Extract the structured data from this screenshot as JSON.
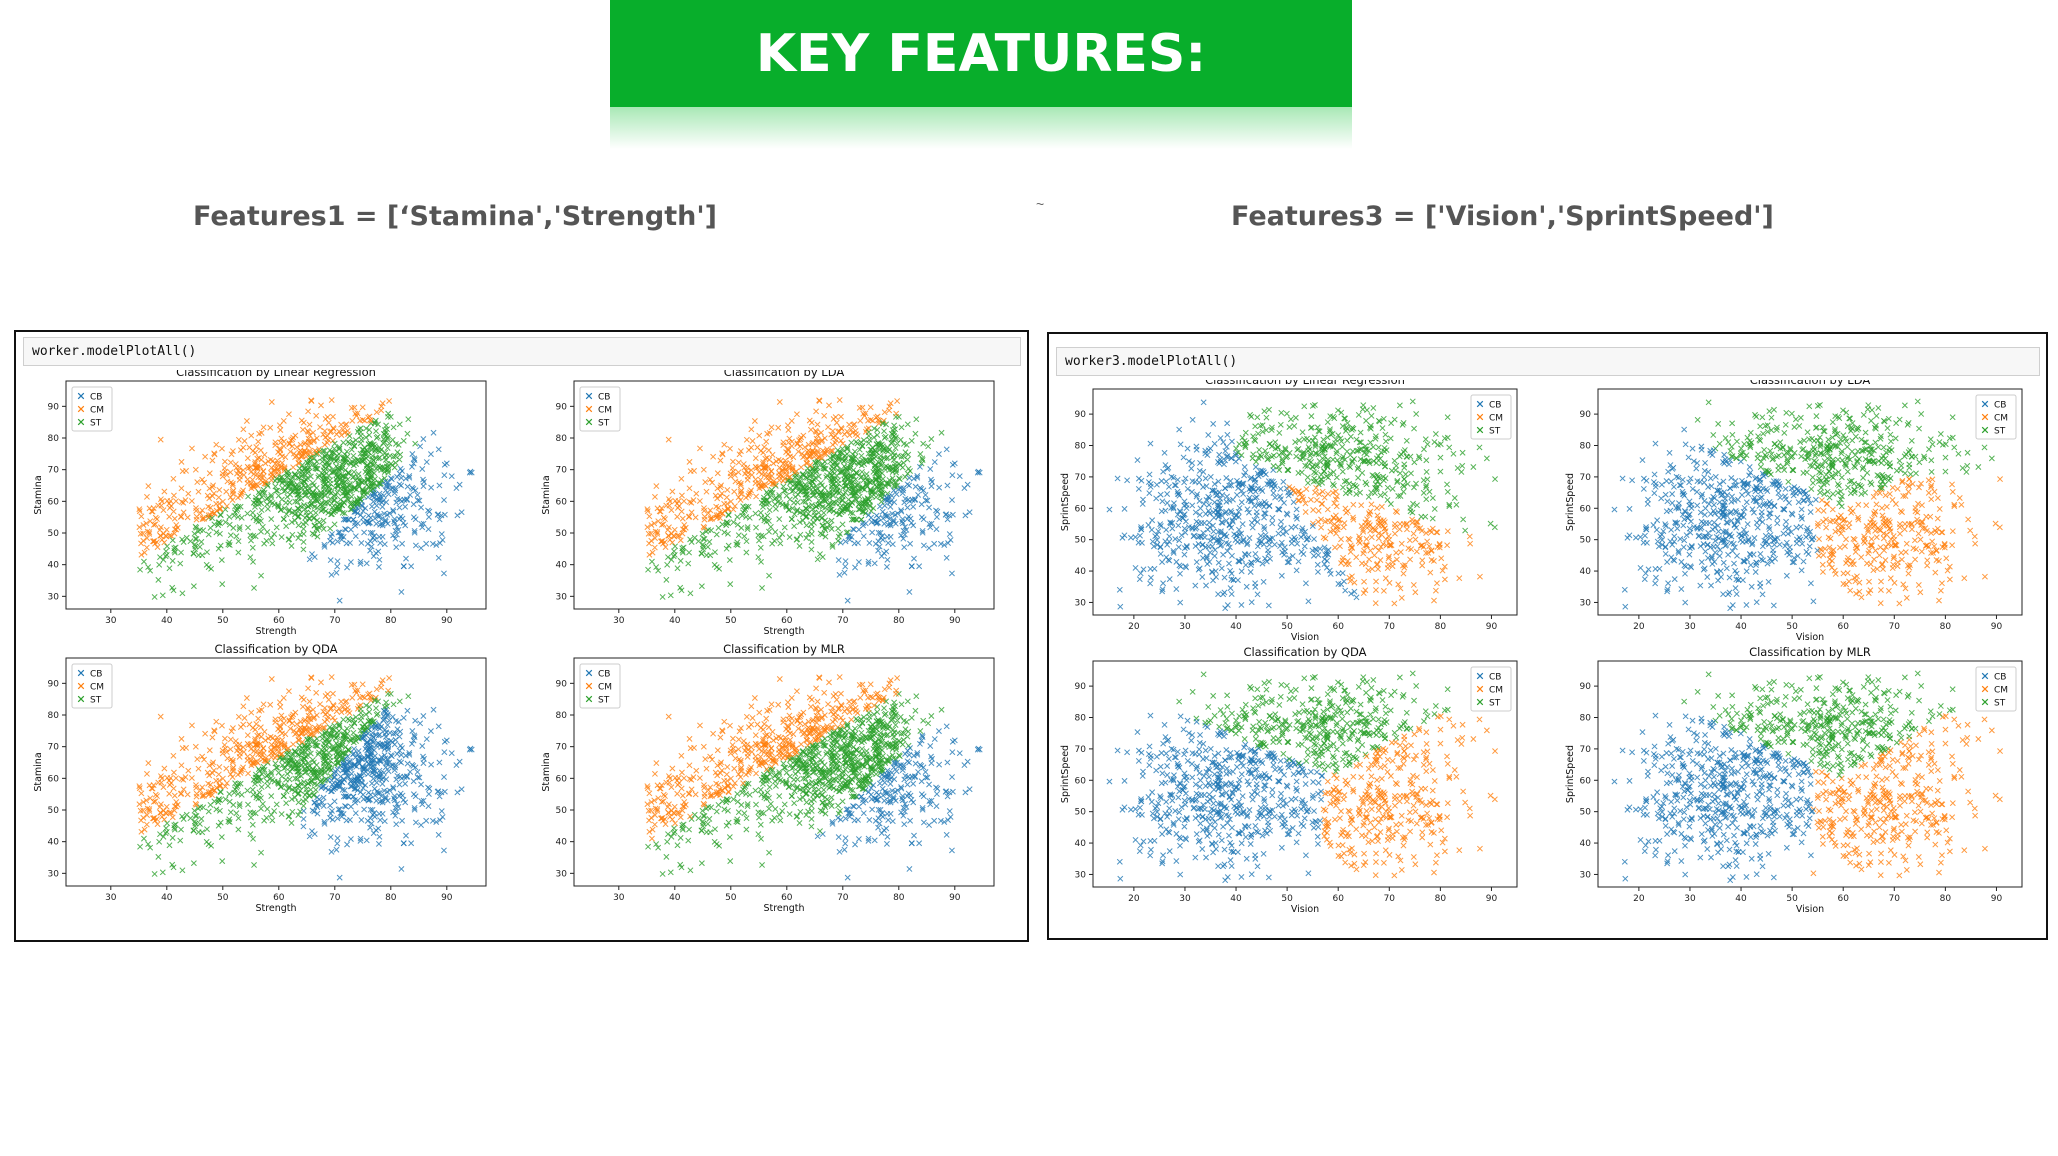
{
  "header": {
    "title": "KEY FEATURES:"
  },
  "features": {
    "left_label": "Features1 = [‘Stamina','Strength']",
    "right_label": "Features3 = ['Vision','SprintSpeed']",
    "tilde": "~"
  },
  "panels": [
    {
      "code": "worker.modelPlotAll()"
    },
    {
      "code": "worker3.modelPlotAll()"
    }
  ],
  "colors": {
    "CB": "#1f77b4",
    "CM": "#ff7f0e",
    "ST": "#2ca02c",
    "banner": "#08ae2b"
  },
  "chart_data": [
    {
      "type": "scatter",
      "panel": 0,
      "title": "Classification by Linear Regression",
      "xlabel": "Strength",
      "ylabel": "Stamina",
      "xlim": [
        22,
        97
      ],
      "ylim": [
        26,
        98
      ],
      "xticks": [
        30,
        40,
        50,
        60,
        70,
        80,
        90
      ],
      "yticks": [
        30,
        40,
        50,
        60,
        70,
        80,
        90
      ],
      "legend": [
        "CB",
        "CM",
        "ST"
      ],
      "legend_position": "upper-left",
      "marker": "x",
      "region_model": "features1-lr"
    },
    {
      "type": "scatter",
      "panel": 0,
      "title": "Classification by LDA",
      "xlabel": "Strength",
      "ylabel": "Stamina",
      "xlim": [
        22,
        97
      ],
      "ylim": [
        26,
        98
      ],
      "xticks": [
        30,
        40,
        50,
        60,
        70,
        80,
        90
      ],
      "yticks": [
        30,
        40,
        50,
        60,
        70,
        80,
        90
      ],
      "legend": [
        "CB",
        "CM",
        "ST"
      ],
      "legend_position": "upper-left",
      "marker": "x",
      "region_model": "features1-lda"
    },
    {
      "type": "scatter",
      "panel": 0,
      "title": "Classification by QDA",
      "xlabel": "Strength",
      "ylabel": "Stamina",
      "xlim": [
        22,
        97
      ],
      "ylim": [
        26,
        98
      ],
      "xticks": [
        30,
        40,
        50,
        60,
        70,
        80,
        90
      ],
      "yticks": [
        30,
        40,
        50,
        60,
        70,
        80,
        90
      ],
      "legend": [
        "CB",
        "CM",
        "ST"
      ],
      "legend_position": "upper-left",
      "marker": "x",
      "region_model": "features1-qda"
    },
    {
      "type": "scatter",
      "panel": 0,
      "title": "Classification by MLR",
      "xlabel": "Strength",
      "ylabel": "Stamina",
      "xlim": [
        22,
        97
      ],
      "ylim": [
        26,
        98
      ],
      "xticks": [
        30,
        40,
        50,
        60,
        70,
        80,
        90
      ],
      "yticks": [
        30,
        40,
        50,
        60,
        70,
        80,
        90
      ],
      "legend": [
        "CB",
        "CM",
        "ST"
      ],
      "legend_position": "upper-left",
      "marker": "x",
      "region_model": "features1-mlr"
    },
    {
      "type": "scatter",
      "panel": 1,
      "title": "Classification by Linear Regression",
      "xlabel": "Vision",
      "ylabel": "SprintSpeed",
      "xlim": [
        12,
        95
      ],
      "ylim": [
        26,
        98
      ],
      "xticks": [
        20,
        30,
        40,
        50,
        60,
        70,
        80,
        90
      ],
      "yticks": [
        30,
        40,
        50,
        60,
        70,
        80,
        90
      ],
      "legend": [
        "CB",
        "CM",
        "ST"
      ],
      "legend_position": "upper-right",
      "marker": "x",
      "region_model": "features3-lr"
    },
    {
      "type": "scatter",
      "panel": 1,
      "title": "Classification by LDA",
      "xlabel": "Vision",
      "ylabel": "SprintSpeed",
      "xlim": [
        12,
        95
      ],
      "ylim": [
        26,
        98
      ],
      "xticks": [
        20,
        30,
        40,
        50,
        60,
        70,
        80,
        90
      ],
      "yticks": [
        30,
        40,
        50,
        60,
        70,
        80,
        90
      ],
      "legend": [
        "CB",
        "CM",
        "ST"
      ],
      "legend_position": "upper-right",
      "marker": "x",
      "region_model": "features3-lda"
    },
    {
      "type": "scatter",
      "panel": 1,
      "title": "Classification by QDA",
      "xlabel": "Vision",
      "ylabel": "SprintSpeed",
      "xlim": [
        12,
        95
      ],
      "ylim": [
        26,
        98
      ],
      "xticks": [
        20,
        30,
        40,
        50,
        60,
        70,
        80,
        90
      ],
      "yticks": [
        30,
        40,
        50,
        60,
        70,
        80,
        90
      ],
      "legend": [
        "CB",
        "CM",
        "ST"
      ],
      "legend_position": "upper-right",
      "marker": "x",
      "region_model": "features3-qda"
    },
    {
      "type": "scatter",
      "panel": 1,
      "title": "Classification by MLR",
      "xlabel": "Vision",
      "ylabel": "SprintSpeed",
      "xlim": [
        12,
        95
      ],
      "ylim": [
        26,
        98
      ],
      "xticks": [
        20,
        30,
        40,
        50,
        60,
        70,
        80,
        90
      ],
      "yticks": [
        30,
        40,
        50,
        60,
        70,
        80,
        90
      ],
      "legend": [
        "CB",
        "CM",
        "ST"
      ],
      "legend_position": "upper-right",
      "marker": "x",
      "region_model": "features3-mlr"
    }
  ]
}
